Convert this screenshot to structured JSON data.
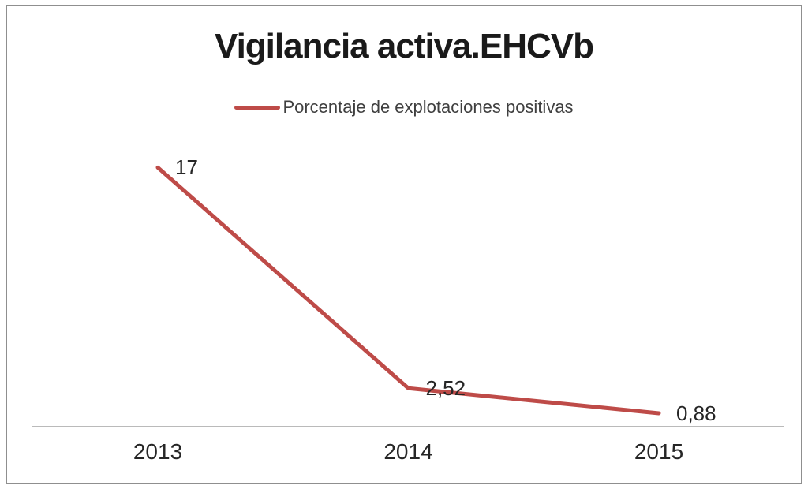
{
  "chart_data": {
    "type": "line",
    "title": "Vigilancia activa.EHCVb",
    "categories": [
      "2013",
      "2014",
      "2015"
    ],
    "series": [
      {
        "name": "Porcentaje de explotaciones positivas",
        "values": [
          17,
          2.52,
          0.88
        ],
        "value_labels": [
          "17",
          "2,52",
          "0,88"
        ],
        "color": "#be4b48"
      }
    ],
    "xlabel": "",
    "ylabel": "",
    "ylim": [
      0,
      18
    ],
    "grid": false,
    "data_labels": true,
    "legend_position": "top",
    "axis_line_color": "#a3a3a3",
    "frame_color": "#8f8f8f"
  }
}
